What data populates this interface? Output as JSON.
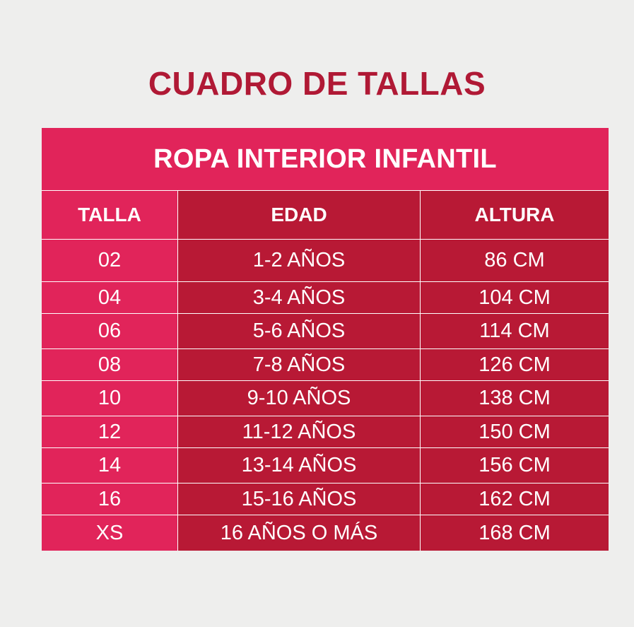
{
  "title": "CUADRO DE TALLAS",
  "table": {
    "banner": "ROPA INTERIOR INFANTIL",
    "headers": [
      "TALLA",
      "EDAD",
      "ALTURA"
    ],
    "rows": [
      [
        "02",
        "1-2 AÑOS",
        "86 CM"
      ],
      [
        "04",
        "3-4 AÑOS",
        "104 CM"
      ],
      [
        "06",
        "5-6 AÑOS",
        "114 CM"
      ],
      [
        "08",
        "7-8 AÑOS",
        "126 CM"
      ],
      [
        "10",
        "9-10 AÑOS",
        "138 CM"
      ],
      [
        "12",
        "11-12 AÑOS",
        "150 CM"
      ],
      [
        "14",
        "13-14 AÑOS",
        "156 CM"
      ],
      [
        "16",
        "15-16 AÑOS",
        "162 CM"
      ],
      [
        "XS",
        "16 AÑOS O MÁS",
        "168 CM"
      ]
    ]
  },
  "colors": {
    "background": "#eeeeed",
    "title": "#b01935",
    "pink": "#e1245a",
    "crimson": "#b81935",
    "text": "#ffffff"
  }
}
